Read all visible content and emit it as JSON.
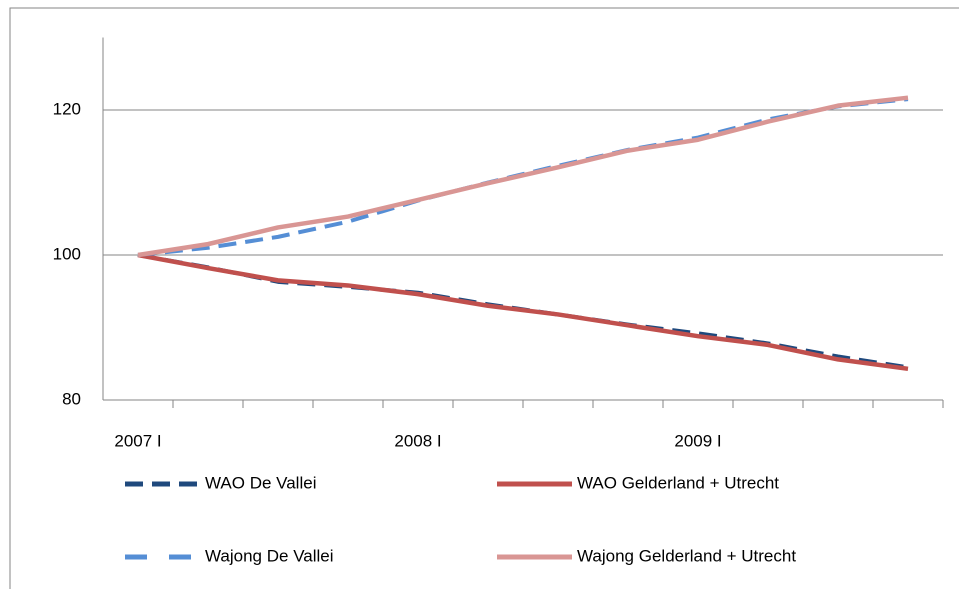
{
  "chart_data": {
    "type": "line",
    "categories": [
      "2007 I",
      null,
      null,
      null,
      "2008 I",
      null,
      null,
      null,
      "2009 I",
      null,
      null,
      null
    ],
    "series": [
      {
        "name": "WAO De Vallei",
        "color": "#1f497d",
        "dash": true,
        "values": [
          100,
          98.3,
          96.3,
          95.6,
          94.8,
          93.2,
          91.8,
          90.4,
          89.2,
          87.8,
          86.0,
          84.5
        ]
      },
      {
        "name": "WAO Gelderland + Utrecht",
        "color": "#c0504d",
        "dash": false,
        "values": [
          100,
          98.2,
          96.5,
          95.8,
          94.6,
          93.0,
          91.8,
          90.3,
          88.8,
          87.6,
          85.6,
          84.3
        ]
      },
      {
        "name": "Wajong De Vallei",
        "color": "#558ed5",
        "dash": true,
        "values": [
          100,
          101.0,
          102.5,
          104.6,
          107.5,
          110.0,
          112.3,
          114.5,
          116.2,
          118.7,
          120.5,
          121.5
        ]
      },
      {
        "name": "Wajong Gelderland + Utrecht",
        "color": "#d99694",
        "dash": false,
        "values": [
          100,
          101.5,
          103.8,
          105.3,
          107.6,
          109.9,
          112.1,
          114.4,
          115.9,
          118.4,
          120.6,
          121.7
        ]
      }
    ],
    "ylim": [
      80,
      130
    ],
    "yticks": [
      80,
      100,
      120
    ],
    "grid": true
  }
}
